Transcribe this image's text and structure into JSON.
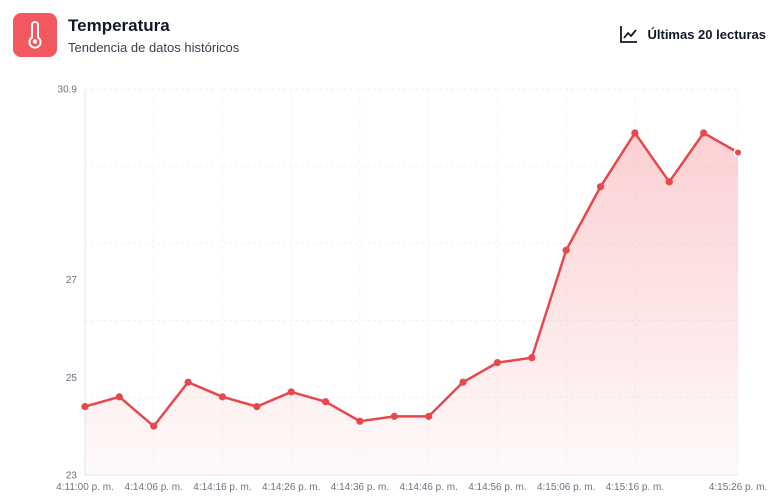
{
  "header": {
    "title": "Temperatura",
    "subtitle": "Tendencia de datos históricos",
    "range_label": "Últimas 20 lecturas",
    "icon": "thermometer-icon",
    "range_icon": "line-chart-icon",
    "accent": "#f2585f"
  },
  "chart_data": {
    "type": "area",
    "title": "",
    "xlabel": "",
    "ylabel": "",
    "ylim": [
      23,
      30.9
    ],
    "y_ticks": [
      23,
      25,
      27,
      30.9
    ],
    "x_tick_labels": [
      "4:11:00 p. m.",
      "4:14:06 p. m.",
      "4:14:16 p. m.",
      "4:14:26 p. m.",
      "4:14:36 p. m.",
      "4:14:46 p. m.",
      "4:14:56 p. m.",
      "4:15:06 p. m.",
      "4:15:16 p. m.",
      "4:15:26 p. m."
    ],
    "x_tick_indices": [
      0,
      2,
      4,
      6,
      8,
      10,
      12,
      14,
      16,
      19
    ],
    "grid": true,
    "legend": "none",
    "series": [
      {
        "color": "#e5484d",
        "values": [
          24.4,
          24.6,
          24.0,
          24.9,
          24.6,
          24.4,
          24.7,
          24.5,
          24.1,
          24.2,
          24.2,
          24.9,
          25.3,
          25.4,
          27.6,
          28.9,
          30.0,
          29.0,
          30.0,
          29.6
        ]
      }
    ]
  }
}
